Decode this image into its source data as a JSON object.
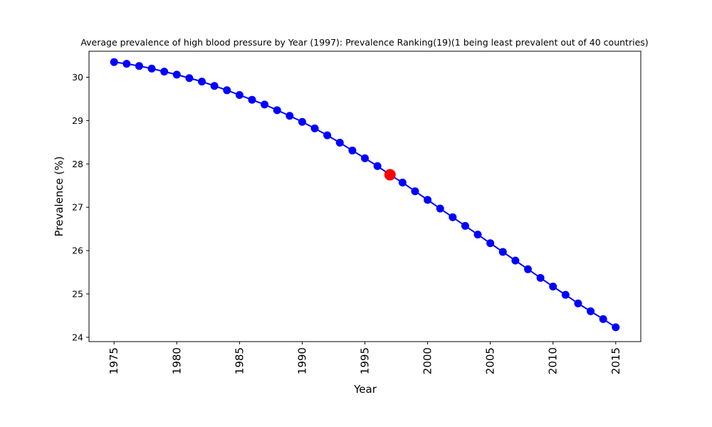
{
  "chart_data": {
    "type": "line",
    "title": "Average prevalence of high blood pressure by Year (1997): Prevalence Ranking(19)(1 being least prevalent out of 40 countries)",
    "xlabel": "Year",
    "ylabel": "Prevalence (%)",
    "xlim": [
      1973,
      2017
    ],
    "ylim": [
      23.9,
      30.6
    ],
    "x_ticks": [
      1975,
      1980,
      1985,
      1990,
      1995,
      2000,
      2005,
      2010,
      2015
    ],
    "y_ticks": [
      24,
      25,
      26,
      27,
      28,
      29,
      30
    ],
    "grid": false,
    "series": [
      {
        "color": "#0000ff",
        "marker": "circle",
        "x": [
          1975,
          1976,
          1977,
          1978,
          1979,
          1980,
          1981,
          1982,
          1983,
          1984,
          1985,
          1986,
          1987,
          1988,
          1989,
          1990,
          1991,
          1992,
          1993,
          1994,
          1995,
          1996,
          1997,
          1998,
          1999,
          2000,
          2001,
          2002,
          2003,
          2004,
          2005,
          2006,
          2007,
          2008,
          2009,
          2010,
          2011,
          2012,
          2013,
          2014,
          2015
        ],
        "y": [
          30.35,
          30.31,
          30.26,
          30.2,
          30.13,
          30.06,
          29.98,
          29.9,
          29.8,
          29.7,
          29.59,
          29.48,
          29.37,
          29.24,
          29.11,
          28.97,
          28.82,
          28.66,
          28.49,
          28.31,
          28.13,
          27.95,
          27.75,
          27.57,
          27.37,
          27.17,
          26.97,
          26.77,
          26.57,
          26.37,
          26.17,
          25.97,
          25.77,
          25.57,
          25.37,
          25.17,
          24.98,
          24.78,
          24.6,
          24.42,
          24.23
        ]
      }
    ],
    "highlight": {
      "x": 1997,
      "y": 27.75,
      "color": "#ff0000"
    }
  }
}
